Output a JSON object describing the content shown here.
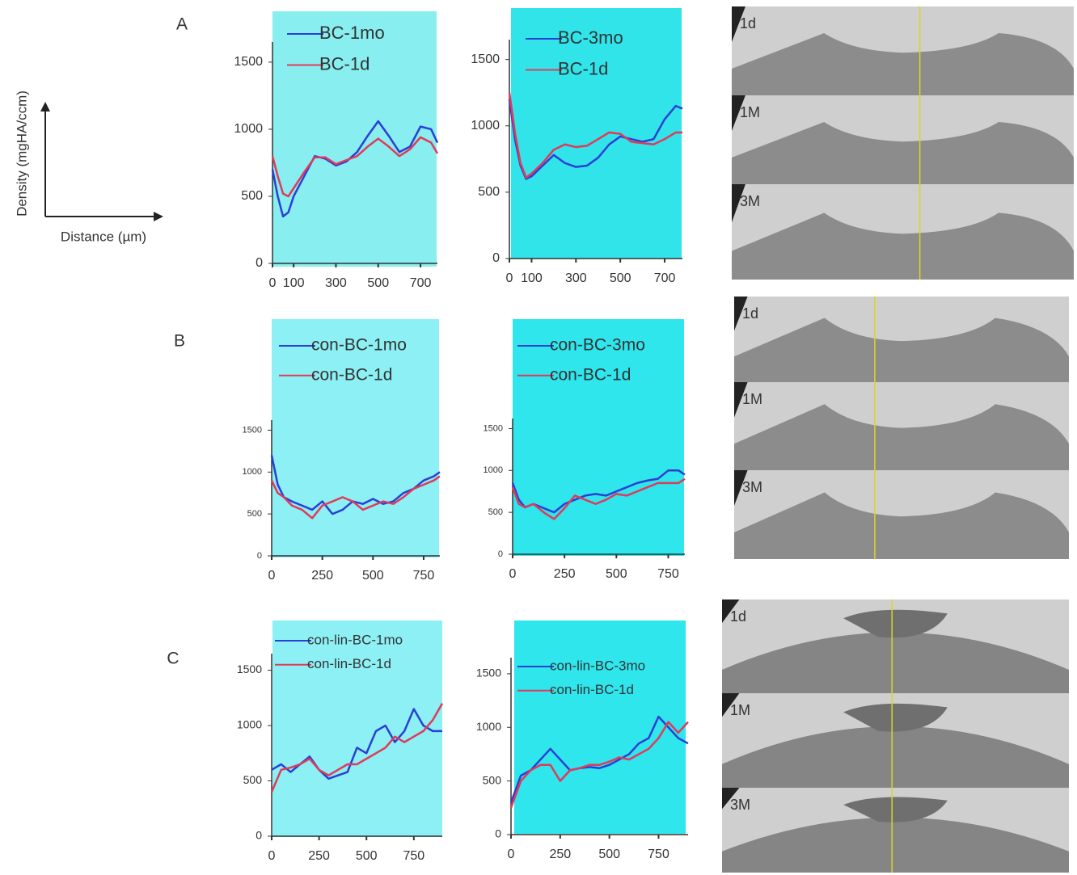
{
  "panel_labels": [
    "A",
    "B",
    "C"
  ],
  "schematic": {
    "y_label": "Density (mgHA/ccm)",
    "x_label": "Distance (µm)"
  },
  "image_labels": [
    [
      "1d",
      "1M",
      "3M"
    ],
    [
      "1d",
      "1M",
      "3M"
    ],
    [
      "1d",
      "1M",
      "3M"
    ]
  ],
  "chart_data": [
    {
      "type": "line",
      "x": [
        0,
        25,
        50,
        75,
        100,
        150,
        200,
        250,
        300,
        350,
        400,
        450,
        500,
        550,
        600,
        650,
        700,
        750,
        780
      ],
      "series": [
        {
          "name": "BC-1mo",
          "color": "#2b3fd4",
          "values": [
            700,
            500,
            350,
            380,
            500,
            650,
            800,
            780,
            730,
            760,
            830,
            950,
            1060,
            950,
            830,
            870,
            1020,
            1000,
            900
          ]
        },
        {
          "name": "BC-1d",
          "color": "#e03a5a",
          "values": [
            800,
            650,
            520,
            500,
            560,
            680,
            790,
            790,
            740,
            770,
            800,
            870,
            930,
            870,
            800,
            850,
            940,
            900,
            820
          ]
        }
      ],
      "xlim": [
        0,
        780
      ],
      "ylim": [
        0,
        1650
      ],
      "xticks": [
        0,
        100,
        300,
        500,
        700
      ],
      "yticks": [
        0,
        500,
        1000,
        1500
      ]
    },
    {
      "type": "line",
      "x": [
        0,
        25,
        50,
        75,
        100,
        150,
        200,
        250,
        300,
        350,
        400,
        450,
        500,
        550,
        600,
        650,
        700,
        750,
        780
      ],
      "series": [
        {
          "name": "BC-3mo",
          "color": "#2b3fd4",
          "values": [
            1200,
            900,
            700,
            600,
            620,
            700,
            780,
            720,
            690,
            700,
            760,
            860,
            920,
            900,
            880,
            900,
            1050,
            1150,
            1130
          ]
        },
        {
          "name": "BC-1d",
          "color": "#e03a5a",
          "values": [
            1250,
            950,
            720,
            610,
            640,
            720,
            820,
            860,
            840,
            850,
            900,
            950,
            940,
            880,
            870,
            860,
            900,
            950,
            950
          ]
        }
      ],
      "xlim": [
        0,
        780
      ],
      "ylim": [
        0,
        1650
      ],
      "xticks": [
        0,
        100,
        300,
        500,
        700
      ],
      "yticks": [
        0,
        500,
        1000,
        1500
      ]
    },
    {
      "type": "line",
      "x": [
        0,
        30,
        60,
        100,
        150,
        200,
        250,
        300,
        350,
        400,
        450,
        500,
        550,
        600,
        650,
        700,
        750,
        800,
        830
      ],
      "series": [
        {
          "name": "con-BC-1mo",
          "color": "#2b3fd4",
          "values": [
            1200,
            850,
            700,
            650,
            600,
            550,
            650,
            500,
            550,
            650,
            620,
            680,
            620,
            650,
            750,
            800,
            900,
            950,
            1000
          ]
        },
        {
          "name": "con-BC-1d",
          "color": "#e03a5a",
          "values": [
            900,
            750,
            700,
            600,
            550,
            450,
            600,
            650,
            700,
            650,
            550,
            600,
            650,
            620,
            700,
            800,
            850,
            900,
            950
          ]
        }
      ],
      "xlim": [
        0,
        830
      ],
      "ylim": [
        0,
        1620
      ],
      "xticks": [
        0,
        250,
        500,
        750
      ],
      "yticks": [
        0,
        500,
        1000,
        1500
      ]
    },
    {
      "type": "line",
      "x": [
        0,
        30,
        60,
        100,
        150,
        200,
        250,
        300,
        350,
        400,
        450,
        500,
        550,
        600,
        650,
        700,
        750,
        800,
        830
      ],
      "series": [
        {
          "name": "con-BC-3mo",
          "color": "#2b3fd4",
          "values": [
            850,
            650,
            560,
            600,
            550,
            500,
            600,
            650,
            700,
            720,
            700,
            750,
            800,
            850,
            880,
            900,
            1000,
            1000,
            950
          ]
        },
        {
          "name": "con-BC-1d",
          "color": "#e03a5a",
          "values": [
            800,
            600,
            560,
            600,
            500,
            420,
            550,
            700,
            650,
            600,
            650,
            720,
            700,
            750,
            800,
            850,
            850,
            850,
            900
          ]
        }
      ],
      "xlim": [
        0,
        830
      ],
      "ylim": [
        0,
        1620
      ],
      "xticks": [
        0,
        250,
        500,
        750
      ],
      "yticks": [
        0,
        500,
        1000,
        1500
      ]
    },
    {
      "type": "line",
      "x": [
        0,
        50,
        100,
        150,
        200,
        250,
        300,
        350,
        400,
        450,
        500,
        550,
        600,
        650,
        700,
        750,
        800,
        850,
        900
      ],
      "series": [
        {
          "name": "con-lin-BC-1mo",
          "color": "#2b3fd4",
          "values": [
            600,
            650,
            580,
            650,
            720,
            600,
            520,
            550,
            580,
            800,
            750,
            950,
            1000,
            850,
            950,
            1150,
            1000,
            950,
            950
          ]
        },
        {
          "name": "con-lin-BC-1d",
          "color": "#e03a5a",
          "values": [
            400,
            600,
            620,
            650,
            700,
            600,
            550,
            600,
            650,
            650,
            700,
            750,
            800,
            900,
            850,
            900,
            950,
            1050,
            1200
          ]
        }
      ],
      "xlim": [
        0,
        900
      ],
      "ylim": [
        0,
        1650
      ],
      "xticks": [
        0,
        250,
        500,
        750
      ],
      "yticks": [
        0,
        500,
        1000,
        1500
      ]
    },
    {
      "type": "line",
      "x": [
        0,
        50,
        100,
        150,
        200,
        250,
        300,
        350,
        400,
        450,
        500,
        550,
        600,
        650,
        700,
        750,
        800,
        850,
        900
      ],
      "series": [
        {
          "name": "con-lin-BC-3mo",
          "color": "#2b3fd4",
          "values": [
            300,
            550,
            600,
            700,
            800,
            700,
            600,
            620,
            630,
            620,
            650,
            700,
            750,
            850,
            900,
            1100,
            1000,
            900,
            850
          ]
        },
        {
          "name": "con-lin-BC-1d",
          "color": "#e03a5a",
          "values": [
            250,
            500,
            600,
            650,
            650,
            500,
            600,
            620,
            650,
            650,
            680,
            720,
            700,
            750,
            800,
            900,
            1050,
            950,
            1050
          ]
        }
      ],
      "xlim": [
        0,
        900
      ],
      "ylim": [
        0,
        1650
      ],
      "xticks": [
        0,
        250,
        500,
        750
      ],
      "yticks": [
        0,
        500,
        1000,
        1500
      ]
    }
  ]
}
